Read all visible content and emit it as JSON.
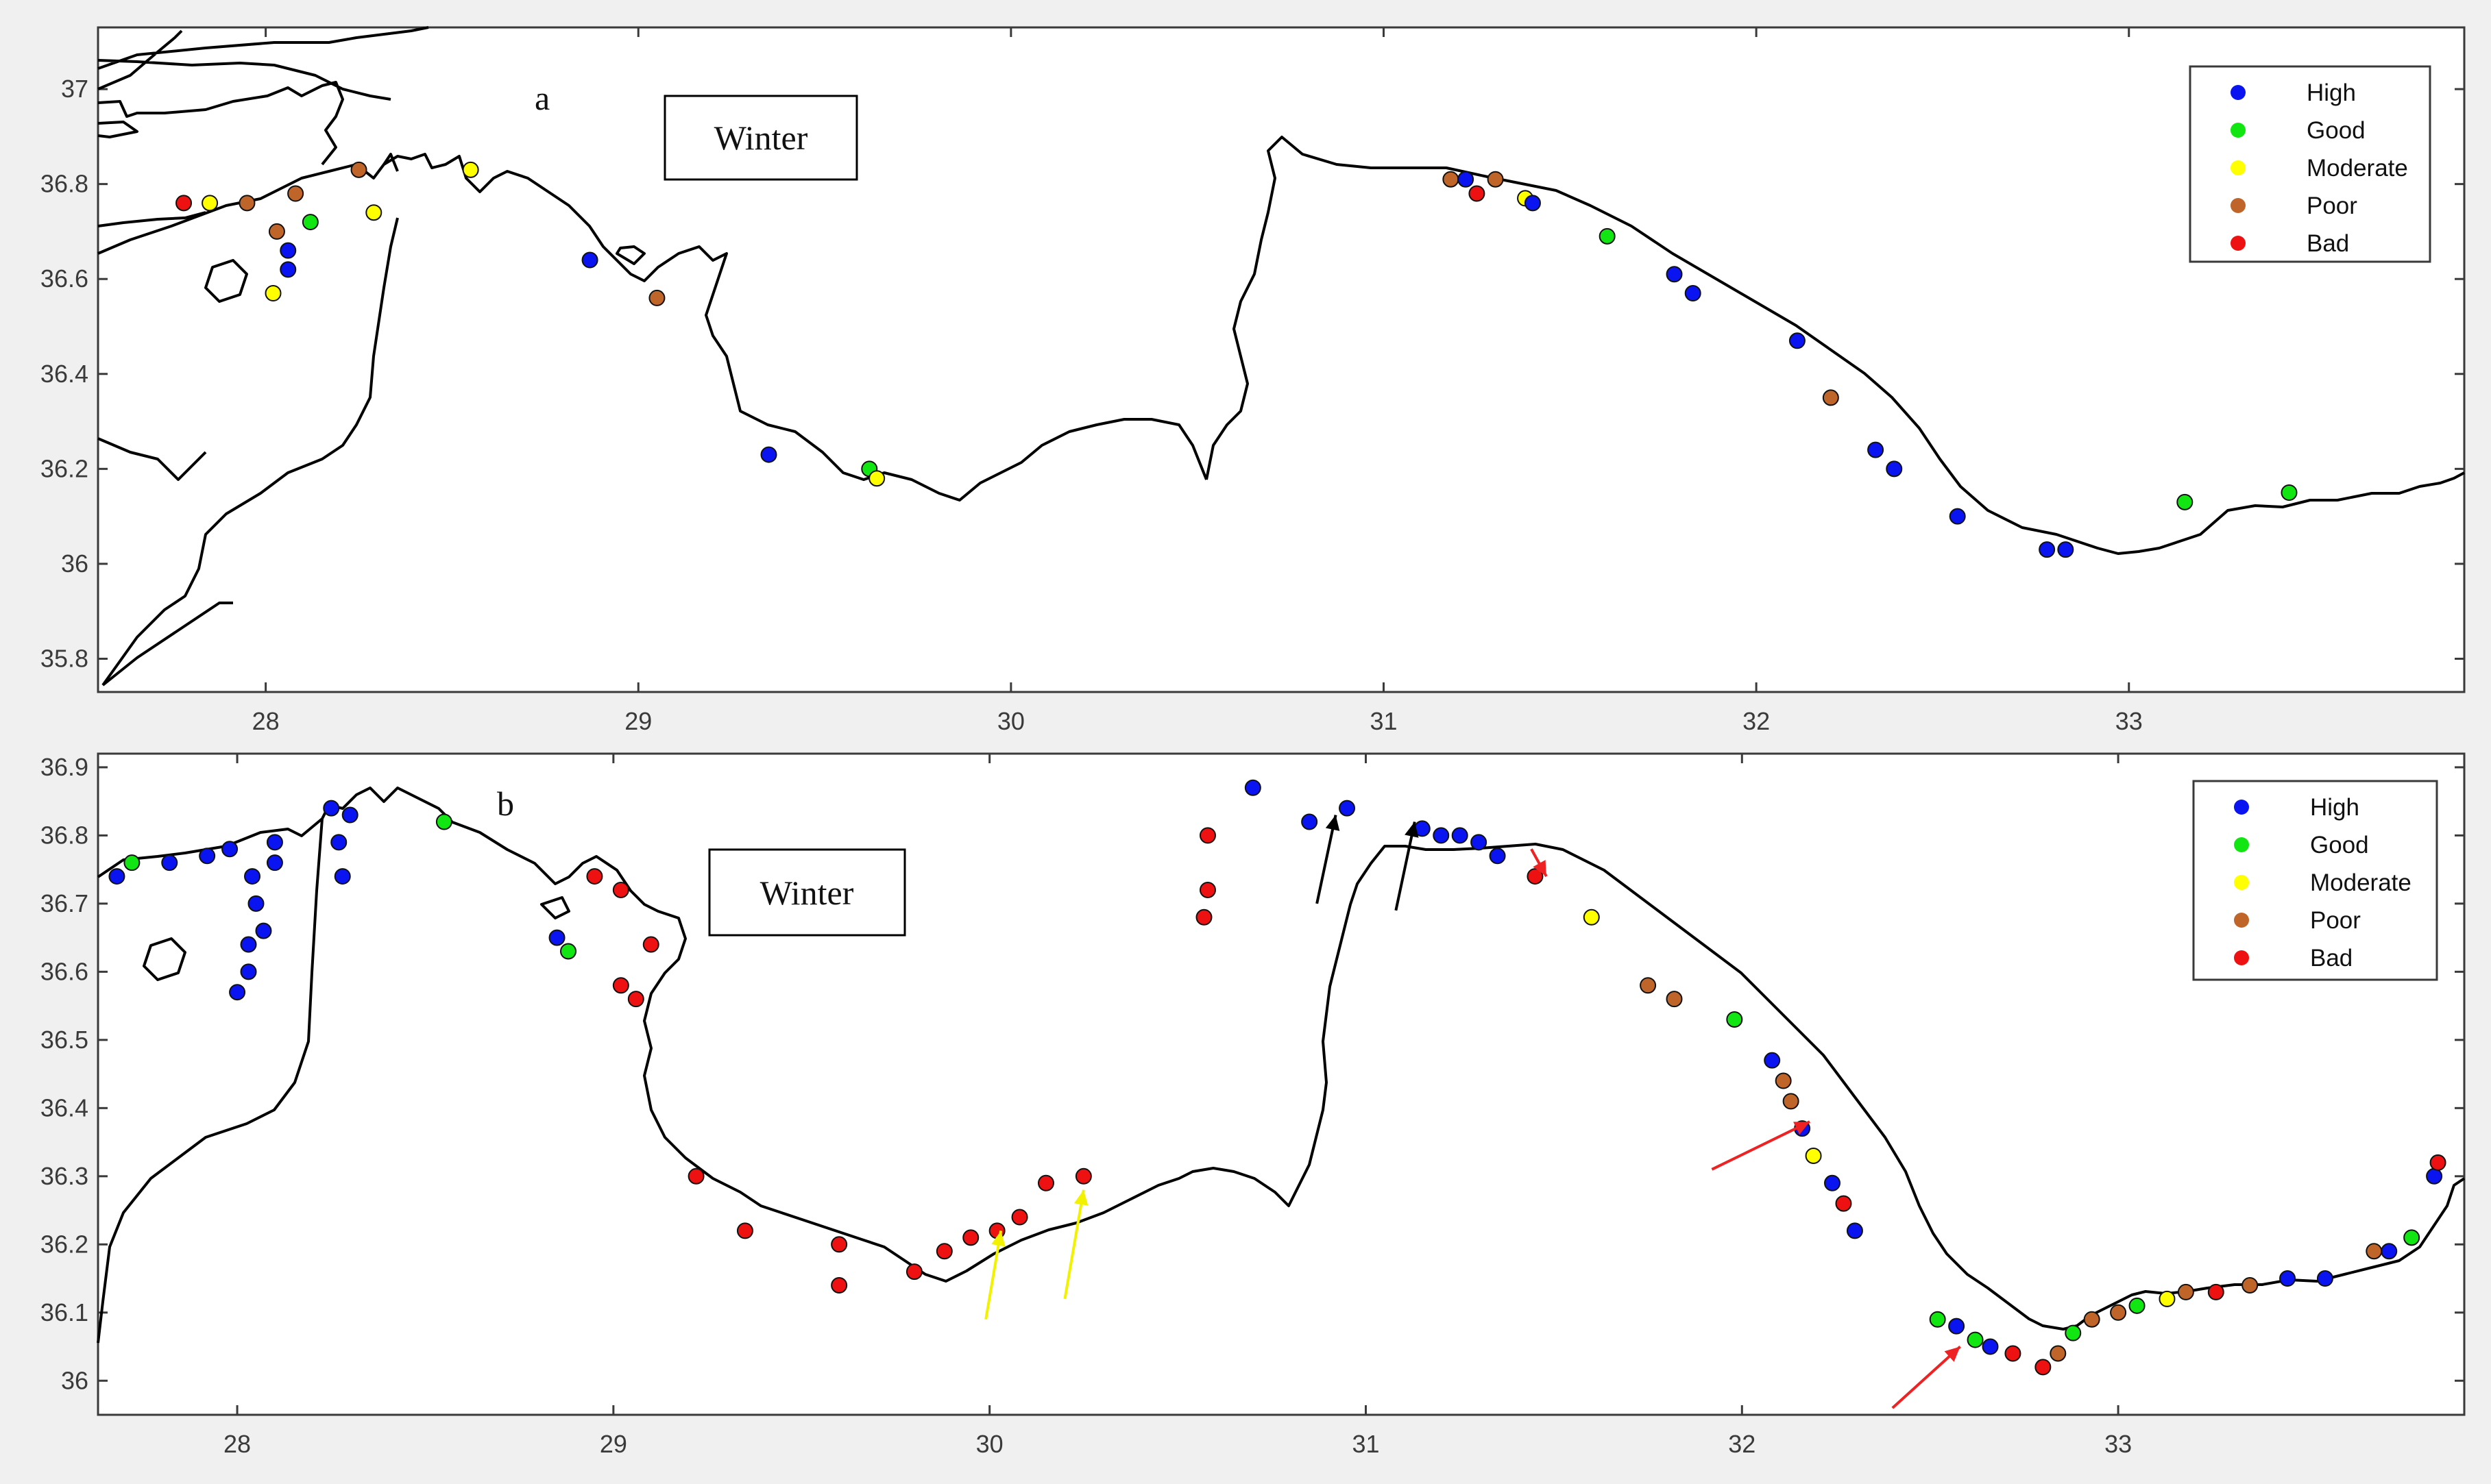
{
  "colors": {
    "High": "#0a14f0",
    "Good": "#12e612",
    "Moderate": "#ffff00",
    "Poor": "#c0652a",
    "Bad": "#ee1111",
    "arrow_black": "#000000",
    "arrow_yellow": "#f2f200",
    "arrow_red": "#ee2222"
  },
  "legend": {
    "items": [
      "High",
      "Good",
      "Moderate",
      "Poor",
      "Bad"
    ]
  },
  "panels": [
    {
      "id": "a",
      "letter": "a",
      "season": "Winter",
      "x_ticks": [
        "28",
        "29",
        "30",
        "31",
        "32",
        "33"
      ],
      "y_ticks": [
        "37",
        "36.8",
        "36.6",
        "36.4",
        "36.2",
        "36",
        "35.8"
      ],
      "xlim": [
        27.55,
        33.9
      ],
      "ylim": [
        35.73,
        37.13
      ],
      "points": [
        {
          "lon": 27.78,
          "lat": 36.76,
          "class": "Bad"
        },
        {
          "lon": 27.85,
          "lat": 36.76,
          "class": "Moderate"
        },
        {
          "lon": 27.95,
          "lat": 36.76,
          "class": "Poor"
        },
        {
          "lon": 28.08,
          "lat": 36.78,
          "class": "Poor"
        },
        {
          "lon": 28.03,
          "lat": 36.7,
          "class": "Poor"
        },
        {
          "lon": 28.06,
          "lat": 36.66,
          "class": "High"
        },
        {
          "lon": 28.12,
          "lat": 36.72,
          "class": "Good"
        },
        {
          "lon": 28.06,
          "lat": 36.62,
          "class": "High"
        },
        {
          "lon": 28.02,
          "lat": 36.57,
          "class": "Moderate"
        },
        {
          "lon": 28.25,
          "lat": 36.83,
          "class": "Poor"
        },
        {
          "lon": 28.29,
          "lat": 36.74,
          "class": "Moderate"
        },
        {
          "lon": 28.55,
          "lat": 36.83,
          "class": "Moderate"
        },
        {
          "lon": 28.87,
          "lat": 36.64,
          "class": "High"
        },
        {
          "lon": 29.05,
          "lat": 36.56,
          "class": "Poor"
        },
        {
          "lon": 29.35,
          "lat": 36.23,
          "class": "High"
        },
        {
          "lon": 29.62,
          "lat": 36.2,
          "class": "Good"
        },
        {
          "lon": 29.64,
          "lat": 36.18,
          "class": "Moderate"
        },
        {
          "lon": 31.18,
          "lat": 36.81,
          "class": "Poor"
        },
        {
          "lon": 31.22,
          "lat": 36.81,
          "class": "High"
        },
        {
          "lon": 31.25,
          "lat": 36.78,
          "class": "Bad"
        },
        {
          "lon": 31.3,
          "lat": 36.81,
          "class": "Poor"
        },
        {
          "lon": 31.38,
          "lat": 36.77,
          "class": "Moderate"
        },
        {
          "lon": 31.4,
          "lat": 36.76,
          "class": "High"
        },
        {
          "lon": 31.6,
          "lat": 36.69,
          "class": "Good"
        },
        {
          "lon": 31.78,
          "lat": 36.61,
          "class": "High"
        },
        {
          "lon": 31.83,
          "lat": 36.57,
          "class": "High"
        },
        {
          "lon": 32.11,
          "lat": 36.47,
          "class": "High"
        },
        {
          "lon": 32.2,
          "lat": 36.35,
          "class": "Poor"
        },
        {
          "lon": 32.32,
          "lat": 36.24,
          "class": "High"
        },
        {
          "lon": 32.37,
          "lat": 36.2,
          "class": "High"
        },
        {
          "lon": 32.54,
          "lat": 36.1,
          "class": "High"
        },
        {
          "lon": 32.78,
          "lat": 36.03,
          "class": "High"
        },
        {
          "lon": 32.83,
          "lat": 36.03,
          "class": "High"
        },
        {
          "lon": 33.15,
          "lat": 36.13,
          "class": "Good"
        },
        {
          "lon": 33.43,
          "lat": 36.15,
          "class": "Good"
        }
      ]
    },
    {
      "id": "b",
      "letter": "b",
      "season": "Winter",
      "x_ticks": [
        "28",
        "29",
        "30",
        "31",
        "32",
        "33"
      ],
      "y_ticks": [
        "36.9",
        "36.8",
        "36.7",
        "36.6",
        "36.5",
        "36.4",
        "36.3",
        "36.2",
        "36.1",
        "36"
      ],
      "xlim": [
        27.63,
        33.92
      ],
      "ylim": [
        35.95,
        36.92
      ],
      "points": [
        {
          "lon": 27.68,
          "lat": 36.74,
          "class": "High"
        },
        {
          "lon": 27.72,
          "lat": 36.76,
          "class": "Good"
        },
        {
          "lon": 27.82,
          "lat": 36.76,
          "class": "High"
        },
        {
          "lon": 27.92,
          "lat": 36.77,
          "class": "High"
        },
        {
          "lon": 27.98,
          "lat": 36.78,
          "class": "High"
        },
        {
          "lon": 28.1,
          "lat": 36.79,
          "class": "High"
        },
        {
          "lon": 28.1,
          "lat": 36.76,
          "class": "High"
        },
        {
          "lon": 28.04,
          "lat": 36.74,
          "class": "High"
        },
        {
          "lon": 28.05,
          "lat": 36.7,
          "class": "High"
        },
        {
          "lon": 28.07,
          "lat": 36.66,
          "class": "High"
        },
        {
          "lon": 28.03,
          "lat": 36.64,
          "class": "High"
        },
        {
          "lon": 28.03,
          "lat": 36.6,
          "class": "High"
        },
        {
          "lon": 28.0,
          "lat": 36.57,
          "class": "High"
        },
        {
          "lon": 28.25,
          "lat": 36.84,
          "class": "High"
        },
        {
          "lon": 28.3,
          "lat": 36.83,
          "class": "High"
        },
        {
          "lon": 28.27,
          "lat": 36.79,
          "class": "High"
        },
        {
          "lon": 28.28,
          "lat": 36.74,
          "class": "High"
        },
        {
          "lon": 28.55,
          "lat": 36.82,
          "class": "Good"
        },
        {
          "lon": 28.85,
          "lat": 36.65,
          "class": "High"
        },
        {
          "lon": 28.88,
          "lat": 36.63,
          "class": "Good"
        },
        {
          "lon": 28.95,
          "lat": 36.74,
          "class": "Bad"
        },
        {
          "lon": 29.02,
          "lat": 36.72,
          "class": "Bad"
        },
        {
          "lon": 29.1,
          "lat": 36.64,
          "class": "Bad"
        },
        {
          "lon": 29.02,
          "lat": 36.58,
          "class": "Bad"
        },
        {
          "lon": 29.06,
          "lat": 36.56,
          "class": "Bad"
        },
        {
          "lon": 29.22,
          "lat": 36.3,
          "class": "Bad"
        },
        {
          "lon": 29.35,
          "lat": 36.22,
          "class": "Bad"
        },
        {
          "lon": 29.6,
          "lat": 36.2,
          "class": "Bad"
        },
        {
          "lon": 29.6,
          "lat": 36.14,
          "class": "Bad"
        },
        {
          "lon": 29.8,
          "lat": 36.16,
          "class": "Bad"
        },
        {
          "lon": 29.88,
          "lat": 36.19,
          "class": "Bad"
        },
        {
          "lon": 29.95,
          "lat": 36.21,
          "class": "Bad"
        },
        {
          "lon": 30.02,
          "lat": 36.22,
          "class": "Bad"
        },
        {
          "lon": 30.08,
          "lat": 36.24,
          "class": "Bad"
        },
        {
          "lon": 30.15,
          "lat": 36.29,
          "class": "Bad"
        },
        {
          "lon": 30.25,
          "lat": 36.3,
          "class": "Bad"
        },
        {
          "lon": 30.58,
          "lat": 36.8,
          "class": "Bad"
        },
        {
          "lon": 30.58,
          "lat": 36.72,
          "class": "Bad"
        },
        {
          "lon": 30.57,
          "lat": 36.68,
          "class": "Bad"
        },
        {
          "lon": 30.7,
          "lat": 36.87,
          "class": "High"
        },
        {
          "lon": 30.85,
          "lat": 36.82,
          "class": "High"
        },
        {
          "lon": 30.95,
          "lat": 36.84,
          "class": "High"
        },
        {
          "lon": 31.15,
          "lat": 36.81,
          "class": "High"
        },
        {
          "lon": 31.2,
          "lat": 36.8,
          "class": "High"
        },
        {
          "lon": 31.25,
          "lat": 36.8,
          "class": "High"
        },
        {
          "lon": 31.3,
          "lat": 36.79,
          "class": "High"
        },
        {
          "lon": 31.35,
          "lat": 36.77,
          "class": "High"
        },
        {
          "lon": 31.45,
          "lat": 36.74,
          "class": "Bad"
        },
        {
          "lon": 31.6,
          "lat": 36.68,
          "class": "Moderate"
        },
        {
          "lon": 31.75,
          "lat": 36.58,
          "class": "Poor"
        },
        {
          "lon": 31.82,
          "lat": 36.56,
          "class": "Poor"
        },
        {
          "lon": 31.98,
          "lat": 36.53,
          "class": "Good"
        },
        {
          "lon": 32.08,
          "lat": 36.47,
          "class": "High"
        },
        {
          "lon": 32.11,
          "lat": 36.44,
          "class": "Poor"
        },
        {
          "lon": 32.13,
          "lat": 36.41,
          "class": "Poor"
        },
        {
          "lon": 32.16,
          "lat": 36.37,
          "class": "High"
        },
        {
          "lon": 32.19,
          "lat": 36.33,
          "class": "Moderate"
        },
        {
          "lon": 32.24,
          "lat": 36.29,
          "class": "High"
        },
        {
          "lon": 32.27,
          "lat": 36.26,
          "class": "Bad"
        },
        {
          "lon": 32.3,
          "lat": 36.22,
          "class": "High"
        },
        {
          "lon": 32.52,
          "lat": 36.09,
          "class": "Good"
        },
        {
          "lon": 32.57,
          "lat": 36.08,
          "class": "High"
        },
        {
          "lon": 32.62,
          "lat": 36.06,
          "class": "Good"
        },
        {
          "lon": 32.66,
          "lat": 36.05,
          "class": "High"
        },
        {
          "lon": 32.72,
          "lat": 36.04,
          "class": "Bad"
        },
        {
          "lon": 32.8,
          "lat": 36.02,
          "class": "Bad"
        },
        {
          "lon": 32.84,
          "lat": 36.04,
          "class": "Poor"
        },
        {
          "lon": 32.88,
          "lat": 36.07,
          "class": "Good"
        },
        {
          "lon": 32.93,
          "lat": 36.09,
          "class": "Poor"
        },
        {
          "lon": 33.0,
          "lat": 36.1,
          "class": "Poor"
        },
        {
          "lon": 33.05,
          "lat": 36.11,
          "class": "Good"
        },
        {
          "lon": 33.13,
          "lat": 36.12,
          "class": "Moderate"
        },
        {
          "lon": 33.18,
          "lat": 36.13,
          "class": "Poor"
        },
        {
          "lon": 33.26,
          "lat": 36.13,
          "class": "Bad"
        },
        {
          "lon": 33.35,
          "lat": 36.14,
          "class": "Poor"
        },
        {
          "lon": 33.45,
          "lat": 36.15,
          "class": "High"
        },
        {
          "lon": 33.55,
          "lat": 36.15,
          "class": "High"
        },
        {
          "lon": 33.68,
          "lat": 36.19,
          "class": "Poor"
        },
        {
          "lon": 33.72,
          "lat": 36.19,
          "class": "High"
        },
        {
          "lon": 33.78,
          "lat": 36.21,
          "class": "Good"
        },
        {
          "lon": 33.84,
          "lat": 36.3,
          "class": "High"
        },
        {
          "lon": 33.85,
          "lat": 36.32,
          "class": "Bad"
        }
      ],
      "arrows": [
        {
          "color": "arrow_black",
          "from": [
            30.87,
            36.7
          ],
          "to": [
            30.92,
            36.83
          ]
        },
        {
          "color": "arrow_black",
          "from": [
            31.08,
            36.69
          ],
          "to": [
            31.13,
            36.82
          ]
        },
        {
          "color": "arrow_red",
          "from": [
            31.44,
            36.78
          ],
          "to": [
            31.48,
            36.74
          ]
        },
        {
          "color": "arrow_yellow",
          "from": [
            29.99,
            36.09
          ],
          "to": [
            30.03,
            36.22
          ]
        },
        {
          "color": "arrow_yellow",
          "from": [
            30.2,
            36.12
          ],
          "to": [
            30.25,
            36.28
          ]
        },
        {
          "color": "arrow_red",
          "from": [
            31.92,
            36.31
          ],
          "to": [
            32.18,
            36.38
          ]
        },
        {
          "color": "arrow_red",
          "from": [
            32.4,
            35.96
          ],
          "to": [
            32.58,
            36.05
          ]
        }
      ]
    }
  ]
}
